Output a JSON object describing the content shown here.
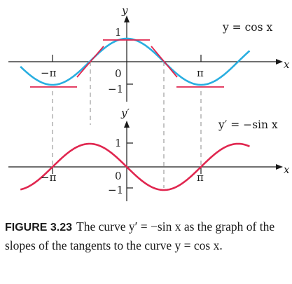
{
  "figure": {
    "colors": {
      "cosine": "#29aee0",
      "sine": "#e0264f",
      "tangent": "#e0264f",
      "axis": "#1a1a1a",
      "guide": "#8a8a8a"
    },
    "top_graph": {
      "function": "cos",
      "y_axis_label": "y",
      "curve_label": "y = cos x",
      "tick_one": "1",
      "tick_neg_one": "−1",
      "tick_zero": "0",
      "tick_neg_pi": "−π",
      "tick_pi": "π",
      "x_axis_label": "x"
    },
    "bottom_graph": {
      "function": "-sin",
      "y_axis_label": "y′",
      "curve_label": "y′ = −sin x",
      "tick_one": "1",
      "tick_neg_one": "−1",
      "tick_zero": "0",
      "tick_neg_pi": "−π",
      "tick_pi": "π",
      "x_axis_label": "x"
    }
  },
  "caption": {
    "label": "FIGURE 3.23",
    "text": "The curve y′ = −sin x as the graph of the slopes of the tangents to the curve y = cos x."
  }
}
